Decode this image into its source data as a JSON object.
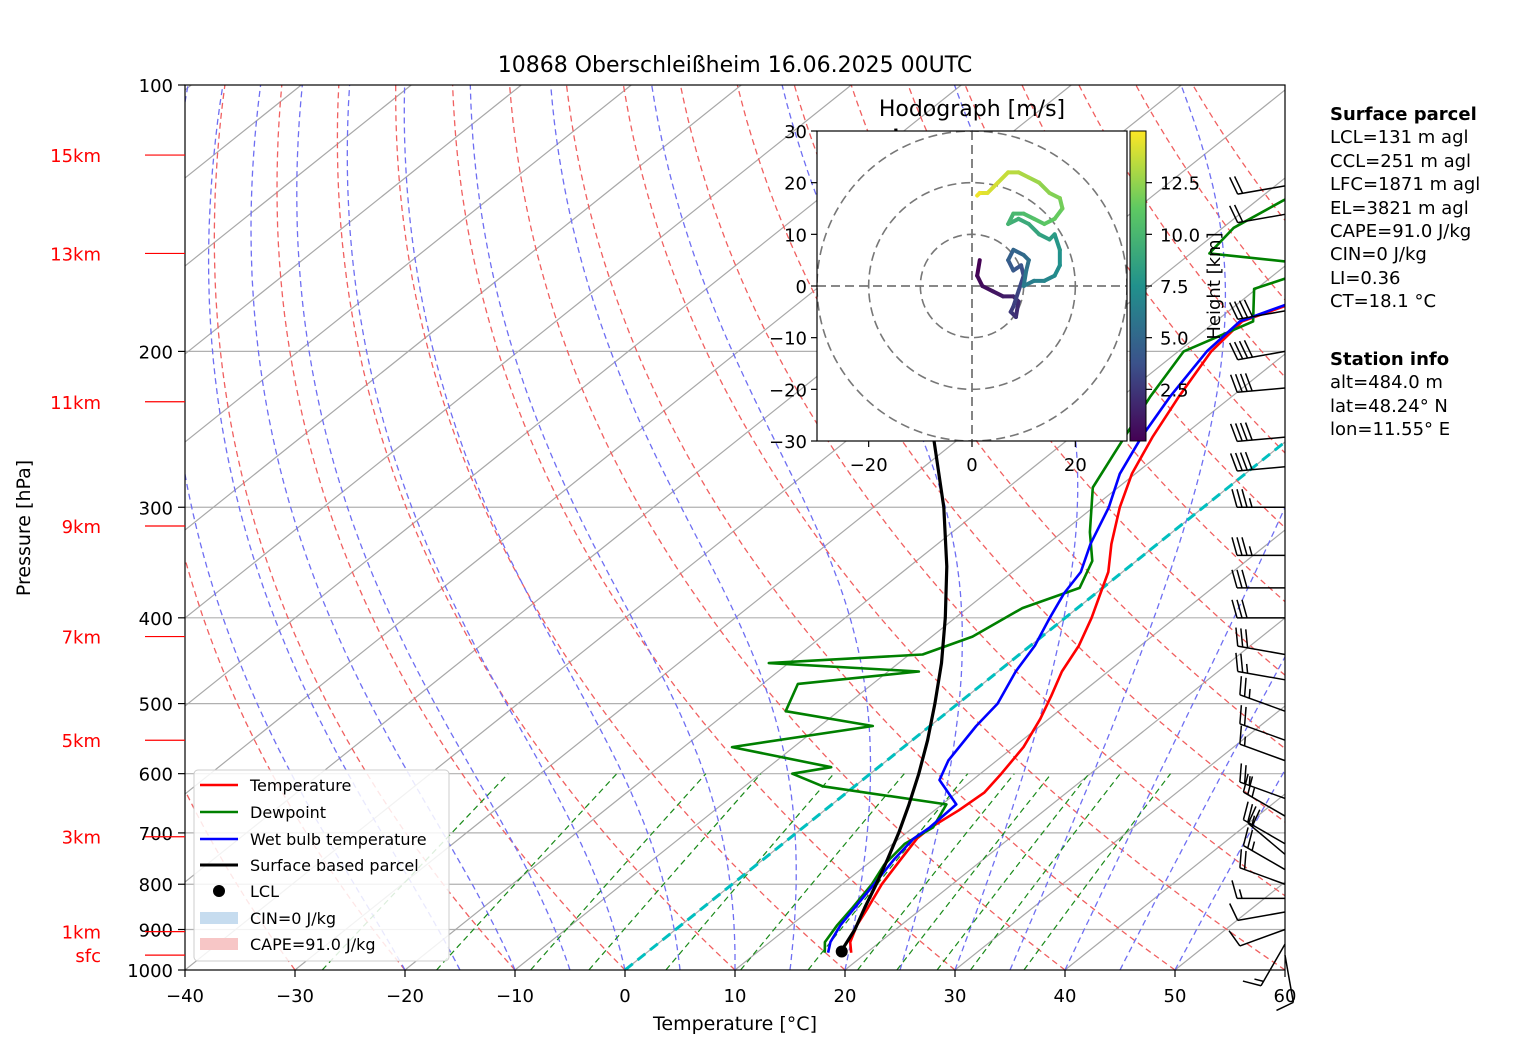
{
  "chart_data": {
    "type": "line",
    "title": "10868 Oberschleißheim 16.06.2025 00UTC",
    "xlabel": "Temperature [°C]",
    "ylabel": "Pressure [hPa]",
    "xlim": [
      -40,
      60
    ],
    "ylim": [
      1000,
      100
    ],
    "y_scale": "log",
    "skew": "skew-T",
    "x_ticks": [
      "−40",
      "−30",
      "−20",
      "−10",
      "0",
      "10",
      "20",
      "30",
      "40",
      "50",
      "60"
    ],
    "y_ticks": [
      "100",
      "200",
      "300",
      "400",
      "500",
      "600",
      "700",
      "800",
      "900",
      "1000"
    ],
    "height_labels": [
      {
        "label": "15km",
        "p": 120
      },
      {
        "label": "13km",
        "p": 155
      },
      {
        "label": "11km",
        "p": 228
      },
      {
        "label": "9km",
        "p": 315
      },
      {
        "label": "7km",
        "p": 420
      },
      {
        "label": "5km",
        "p": 550
      },
      {
        "label": "3km",
        "p": 707
      },
      {
        "label": "1km",
        "p": 905
      },
      {
        "label": "sfc",
        "p": 962
      }
    ],
    "series": [
      {
        "name": "Temperature",
        "color": "#ff0000",
        "points": [
          [
            18.6,
            956
          ],
          [
            17.3,
            930
          ],
          [
            16.0,
            890
          ],
          [
            15.0,
            850
          ],
          [
            13.6,
            800
          ],
          [
            12.5,
            750
          ],
          [
            11.6,
            710
          ],
          [
            11.6,
            690
          ],
          [
            12.2,
            660
          ],
          [
            12.5,
            630
          ],
          [
            11.9,
            600
          ],
          [
            10.9,
            560
          ],
          [
            9.2,
            520
          ],
          [
            7.6,
            490
          ],
          [
            5.8,
            460
          ],
          [
            4.4,
            430
          ],
          [
            2.4,
            400
          ],
          [
            0.4,
            375
          ],
          [
            -1.3,
            355
          ],
          [
            -4.2,
            330
          ],
          [
            -7.6,
            300
          ],
          [
            -10.3,
            275
          ],
          [
            -12.6,
            250
          ],
          [
            -14.8,
            225
          ],
          [
            -17.0,
            200
          ],
          [
            -17.6,
            185
          ],
          [
            -13.7,
            172
          ],
          [
            -10.9,
            160
          ],
          [
            -6.6,
            145
          ],
          [
            -3.4,
            135
          ],
          [
            -0.8,
            125
          ],
          [
            3.3,
            115
          ],
          [
            3.9,
            108
          ]
        ]
      },
      {
        "name": "Dewpoint",
        "color": "#008000",
        "points": [
          [
            16.2,
            956
          ],
          [
            15.0,
            930
          ],
          [
            14.2,
            890
          ],
          [
            13.6,
            850
          ],
          [
            12.7,
            800
          ],
          [
            11.6,
            760
          ],
          [
            11.1,
            720
          ],
          [
            11.8,
            690
          ],
          [
            10.4,
            650
          ],
          [
            -2.9,
            620
          ],
          [
            -7.1,
            600
          ],
          [
            -4.3,
            590
          ],
          [
            -15.6,
            560
          ],
          [
            -5.2,
            530
          ],
          [
            -14.8,
            510
          ],
          [
            -16.8,
            475
          ],
          [
            -7.2,
            460
          ],
          [
            -21.8,
            450
          ],
          [
            -8.8,
            440
          ],
          [
            -6.3,
            420
          ],
          [
            -5.0,
            390
          ],
          [
            -2.1,
            370
          ],
          [
            -4.0,
            345
          ],
          [
            -7.5,
            320
          ],
          [
            -12.3,
            285
          ],
          [
            -14.3,
            260
          ],
          [
            -17.4,
            225
          ],
          [
            -19.5,
            200
          ],
          [
            -16.6,
            185
          ],
          [
            -20.2,
            170
          ],
          [
            -16.5,
            160
          ],
          [
            -28.3,
            155
          ],
          [
            -29.0,
            145
          ],
          [
            -27.6,
            135
          ],
          [
            -25.6,
            125
          ],
          [
            -24.5,
            115
          ],
          [
            -23.2,
            108
          ]
        ]
      },
      {
        "name": "Wet bulb temperature",
        "color": "#0000ff",
        "points": [
          [
            16.5,
            956
          ],
          [
            15.5,
            930
          ],
          [
            14.5,
            890
          ],
          [
            13.8,
            850
          ],
          [
            12.9,
            800
          ],
          [
            11.9,
            750
          ],
          [
            11.3,
            710
          ],
          [
            11.5,
            690
          ],
          [
            11.3,
            650
          ],
          [
            7.0,
            610
          ],
          [
            5.6,
            580
          ],
          [
            4.2,
            530
          ],
          [
            3.6,
            500
          ],
          [
            1.6,
            460
          ],
          [
            0.4,
            430
          ],
          [
            -1.4,
            400
          ],
          [
            -2.9,
            375
          ],
          [
            -3.8,
            355
          ],
          [
            -6.1,
            330
          ],
          [
            -8.6,
            300
          ],
          [
            -11.4,
            275
          ],
          [
            -13.6,
            250
          ],
          [
            -15.6,
            225
          ],
          [
            -17.4,
            200
          ],
          [
            -17.8,
            185
          ],
          [
            -14.0,
            172
          ],
          [
            -11.2,
            160
          ],
          [
            -6.9,
            145
          ],
          [
            -3.7,
            135
          ],
          [
            -1.1,
            125
          ],
          [
            3.0,
            115
          ],
          [
            3.6,
            108
          ]
        ]
      },
      {
        "name": "Surface based parcel",
        "color": "#000000",
        "points": [
          [
            17.6,
            956
          ],
          [
            16.3,
            900
          ],
          [
            14.7,
            850
          ],
          [
            13.1,
            800
          ],
          [
            11.3,
            750
          ],
          [
            9.3,
            700
          ],
          [
            7.0,
            650
          ],
          [
            4.4,
            600
          ],
          [
            1.4,
            550
          ],
          [
            -2.1,
            500
          ],
          [
            -6.1,
            450
          ],
          [
            -10.9,
            400
          ],
          [
            -16.6,
            350
          ],
          [
            -23.6,
            300
          ],
          [
            -32.5,
            250
          ],
          [
            -44.0,
            200
          ],
          [
            -52.0,
            170
          ],
          [
            -61.0,
            140
          ],
          [
            -66.0,
            125
          ],
          [
            -71.0,
            112
          ]
        ]
      }
    ],
    "lcl": {
      "t": 17.6,
      "p": 953
    },
    "legend": {
      "position": "lower left",
      "entries": [
        "Temperature",
        "Dewpoint",
        "Wet bulb temperature",
        "Surface based parcel",
        "LCL",
        "CIN=0 J/kg",
        "CAPE=91.0 J/kg"
      ]
    },
    "wind_barbs": [
      {
        "p": 962,
        "speed_kt": 10,
        "dir": 170
      },
      {
        "p": 935,
        "speed_kt": 15,
        "dir": 210
      },
      {
        "p": 900,
        "speed_kt": 10,
        "dir": 250
      },
      {
        "p": 860,
        "speed_kt": 10,
        "dir": 260
      },
      {
        "p": 830,
        "speed_kt": 15,
        "dir": 270
      },
      {
        "p": 800,
        "speed_kt": 20,
        "dir": 290
      },
      {
        "p": 770,
        "speed_kt": 25,
        "dir": 300
      },
      {
        "p": 740,
        "speed_kt": 20,
        "dir": 310
      },
      {
        "p": 720,
        "speed_kt": 25,
        "dir": 300
      },
      {
        "p": 670,
        "speed_kt": 25,
        "dir": 300
      },
      {
        "p": 640,
        "speed_kt": 25,
        "dir": 290
      },
      {
        "p": 580,
        "speed_kt": 15,
        "dir": 290
      },
      {
        "p": 550,
        "speed_kt": 20,
        "dir": 290
      },
      {
        "p": 510,
        "speed_kt": 25,
        "dir": 290
      },
      {
        "p": 470,
        "speed_kt": 25,
        "dir": 280
      },
      {
        "p": 440,
        "speed_kt": 30,
        "dir": 280
      },
      {
        "p": 400,
        "speed_kt": 30,
        "dir": 270
      },
      {
        "p": 370,
        "speed_kt": 30,
        "dir": 270
      },
      {
        "p": 340,
        "speed_kt": 35,
        "dir": 270
      },
      {
        "p": 300,
        "speed_kt": 35,
        "dir": 270
      },
      {
        "p": 270,
        "speed_kt": 40,
        "dir": 265
      },
      {
        "p": 250,
        "speed_kt": 40,
        "dir": 265
      },
      {
        "p": 220,
        "speed_kt": 40,
        "dir": 265
      },
      {
        "p": 200,
        "speed_kt": 40,
        "dir": 260
      },
      {
        "p": 180,
        "speed_kt": 40,
        "dir": 260
      },
      {
        "p": 140,
        "speed_kt": 20,
        "dir": 260
      },
      {
        "p": 130,
        "speed_kt": 20,
        "dir": 260
      }
    ],
    "hodograph": {
      "title": "Hodograph [m/s]",
      "xlim": [
        -30,
        30
      ],
      "ylim": [
        -30,
        30
      ],
      "x_ticks": [
        "−20",
        "0",
        "20"
      ],
      "y_ticks": [
        "30",
        "20",
        "10",
        "0",
        "−10",
        "−20",
        "−30"
      ],
      "ring_radii": [
        10,
        20,
        30
      ],
      "colorbar": {
        "label": "Height [km]",
        "ticks": [
          "2.5",
          "5.0",
          "7.5",
          "10.0",
          "12.5"
        ],
        "range": [
          0,
          15
        ]
      },
      "points": [
        [
          1.5,
          5
        ],
        [
          1.0,
          2
        ],
        [
          2.0,
          0
        ],
        [
          4.0,
          -1
        ],
        [
          6.0,
          -2
        ],
        [
          8.0,
          -2
        ],
        [
          9.0,
          -3
        ],
        [
          8.5,
          -6
        ],
        [
          7.5,
          -5
        ],
        [
          8.0,
          -4
        ],
        [
          9.0,
          -1
        ],
        [
          10.0,
          2
        ],
        [
          9.5,
          4
        ],
        [
          8.0,
          3
        ],
        [
          7.0,
          5
        ],
        [
          8.0,
          7
        ],
        [
          10.0,
          6
        ],
        [
          11.0,
          5
        ],
        [
          10.5,
          3
        ],
        [
          10.0,
          0
        ],
        [
          12.0,
          1
        ],
        [
          14.0,
          1
        ],
        [
          16.0,
          2
        ],
        [
          17.0,
          4
        ],
        [
          17.0,
          7
        ],
        [
          16.0,
          10
        ],
        [
          15.0,
          9
        ],
        [
          13.0,
          10
        ],
        [
          11.0,
          12
        ],
        [
          9.0,
          13
        ],
        [
          7.0,
          12
        ],
        [
          8.0,
          14
        ],
        [
          10.0,
          14
        ],
        [
          12.0,
          13
        ],
        [
          14.0,
          12
        ],
        [
          16.0,
          13
        ],
        [
          17.5,
          15
        ],
        [
          17.0,
          17
        ],
        [
          15.0,
          18
        ],
        [
          13.0,
          20
        ],
        [
          11.0,
          21
        ],
        [
          9.0,
          22
        ],
        [
          7.0,
          22
        ],
        [
          5.0,
          20
        ],
        [
          3.0,
          18
        ],
        [
          1.5,
          18
        ],
        [
          1.0,
          17.5
        ]
      ]
    }
  },
  "surface_parcel": {
    "header": "Surface parcel",
    "lines": [
      "LCL=131 m agl",
      "CCL=251 m agl",
      "LFC=1871 m agl",
      "EL=3821 m agl",
      "CAPE=91.0 J/kg",
      "CIN=0 J/kg",
      "LI=0.36",
      "CT=18.1 °C"
    ]
  },
  "station_info": {
    "header": "Station info",
    "lines": [
      "alt=484.0 m",
      "lat=48.24° N",
      "lon=11.55° E"
    ]
  },
  "colors": {
    "temperature": "#ff0000",
    "dewpoint": "#008000",
    "wetbulb": "#0000ff",
    "parcel": "#000000",
    "freezing_level": "#00bfbf",
    "height_labels": "#ff0000"
  }
}
